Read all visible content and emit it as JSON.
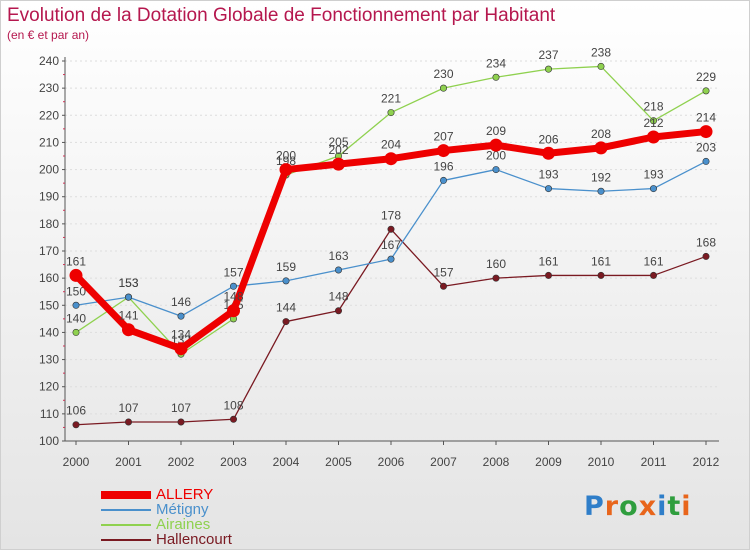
{
  "title": "Evolution de la Dotation Globale de Fonctionnement par Habitant",
  "subtitle": "(en € et par an)",
  "logo": {
    "text": "Proxiti",
    "letter_colors": [
      "#2f7ec9",
      "#e8651b",
      "#2f9e3e",
      "#e8651b",
      "#2f7ec9",
      "#2f9e3e",
      "#e8651b"
    ]
  },
  "colors": {
    "title": "#b5174e",
    "axis": "#555555",
    "grid": "#dddddd",
    "label": "#444444"
  },
  "chart_data": {
    "type": "line",
    "title": "Evolution de la Dotation Globale de Fonctionnement par Habitant",
    "ylabel": "(en € et par an)",
    "xlabel": "",
    "categories": [
      "2000",
      "2001",
      "2002",
      "2003",
      "2004",
      "2005",
      "2006",
      "2007",
      "2008",
      "2009",
      "2010",
      "2011",
      "2012"
    ],
    "ylim": [
      100,
      240
    ],
    "yticks": [
      100,
      110,
      120,
      130,
      140,
      150,
      160,
      170,
      180,
      190,
      200,
      210,
      220,
      230,
      240
    ],
    "grid": "horizontal",
    "legend_position": "bottom-left",
    "series": [
      {
        "name": "Hallencourt",
        "color": "#7a1a22",
        "values": [
          106,
          107,
          107,
          108,
          144,
          148,
          178,
          157,
          160,
          161,
          161,
          161,
          168
        ],
        "labels": [
          "106",
          "107",
          "107",
          "108",
          "144",
          "148",
          "178",
          "157",
          "160",
          "161",
          "161",
          "161",
          "168"
        ]
      },
      {
        "name": "Airaines",
        "color": "#8fd14f",
        "values": [
          140,
          153,
          132,
          145,
          198,
          205,
          221,
          230,
          234,
          237,
          238,
          218,
          229
        ],
        "labels": [
          "140",
          "153",
          "132",
          "145",
          "198",
          "205",
          "221",
          "230",
          "234",
          "237",
          "238",
          "218",
          "229"
        ]
      },
      {
        "name": "Métigny",
        "color": "#4a90cc",
        "values": [
          150,
          153,
          146,
          157,
          159,
          163,
          167,
          196,
          200,
          193,
          192,
          193,
          203
        ],
        "labels": [
          "150",
          "153",
          "146",
          "157",
          "159",
          "163",
          "167",
          "196",
          "200",
          "193",
          "192",
          "193",
          "203"
        ]
      },
      {
        "name": "ALLERY",
        "color": "#ee0000",
        "values": [
          161,
          141,
          134,
          148,
          200,
          202,
          204,
          207,
          209,
          206,
          208,
          212,
          214
        ],
        "labels": [
          "161",
          "141",
          "134",
          "148",
          "200",
          "202",
          "204",
          "207",
          "209",
          "206",
          "208",
          "212",
          "214"
        ]
      }
    ],
    "legend": [
      {
        "name": "ALLERY",
        "color": "#ee0000"
      },
      {
        "name": "Métigny",
        "color": "#4a90cc"
      },
      {
        "name": "Airaines",
        "color": "#8fd14f"
      },
      {
        "name": "Hallencourt",
        "color": "#7a1a22"
      }
    ]
  }
}
